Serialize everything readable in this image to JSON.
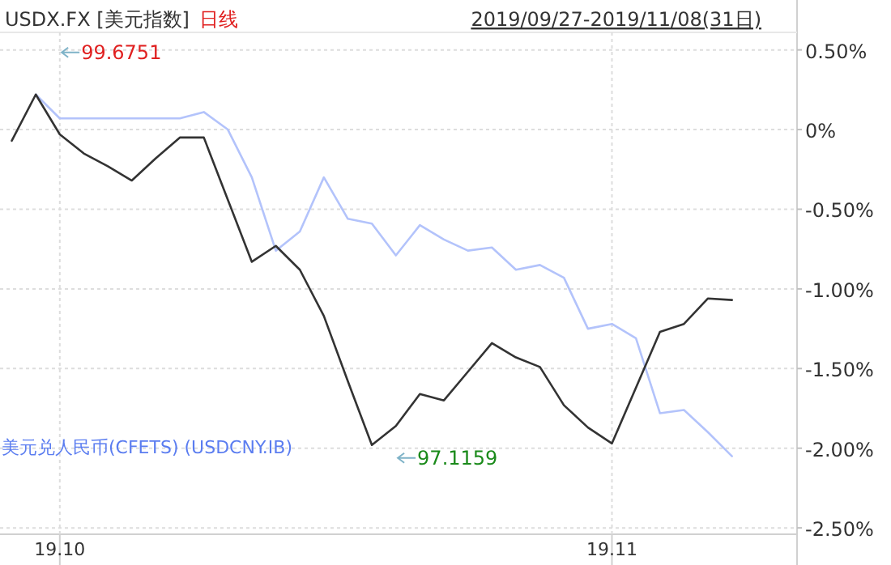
{
  "chart_data": {
    "type": "line",
    "title": "USDX.FX [美元指数]",
    "subtitle": "日线",
    "annotations": [
      "99.6751",
      "97.1159",
      "2019/09/27-2019/11/08(31日)"
    ],
    "categories": [
      null,
      null,
      "19.10",
      null,
      null,
      null,
      null,
      null,
      null,
      null,
      null,
      null,
      null,
      null,
      null,
      null,
      null,
      null,
      null,
      null,
      null,
      null,
      null,
      null,
      null,
      "19.11",
      null,
      null,
      null,
      null,
      null
    ],
    "series": [
      {
        "color": "#b3c3fb",
        "name": "美元兑人民币(CFETS) (USDCNY.IB)",
        "values": [
          null,
          0.22,
          0.07,
          0.07,
          0.07,
          0.07,
          0.07,
          0.07,
          0.11,
          0.0,
          -0.3,
          -0.76,
          -0.64,
          -0.3,
          -0.56,
          -0.59,
          -0.79,
          -0.6,
          -0.69,
          -0.76,
          -0.74,
          -0.88,
          -0.85,
          -0.93,
          -1.25,
          -1.22,
          -1.31,
          -1.78,
          -1.76,
          -1.9,
          -2.05
        ]
      },
      {
        "color": "#333333",
        "values": [
          -0.07,
          0.22,
          -0.03,
          -0.15,
          -0.23,
          -0.32,
          -0.18,
          -0.05,
          -0.05,
          -0.44,
          -0.83,
          -0.73,
          -0.88,
          -1.17,
          -1.58,
          -1.98,
          -1.86,
          -1.66,
          -1.7,
          -1.52,
          -1.34,
          -1.43,
          -1.49,
          -1.73,
          -1.87,
          -1.97,
          -1.62,
          -1.27,
          -1.22,
          -1.06,
          -1.07
        ]
      }
    ],
    "ylim": [
      -2.54,
      0.61
    ],
    "yticks": [
      {
        "value": 0.5,
        "label": "0.50%"
      },
      {
        "value": 0,
        "label": "0%"
      },
      {
        "value": -0.5,
        "label": "-0.50%"
      },
      {
        "value": -1,
        "label": "-1.00%"
      },
      {
        "value": -1.5,
        "label": "-1.50%"
      },
      {
        "value": -2,
        "label": "-2.00%"
      },
      {
        "value": -2.5,
        "label": "-2.50%"
      }
    ],
    "grid": true
  }
}
